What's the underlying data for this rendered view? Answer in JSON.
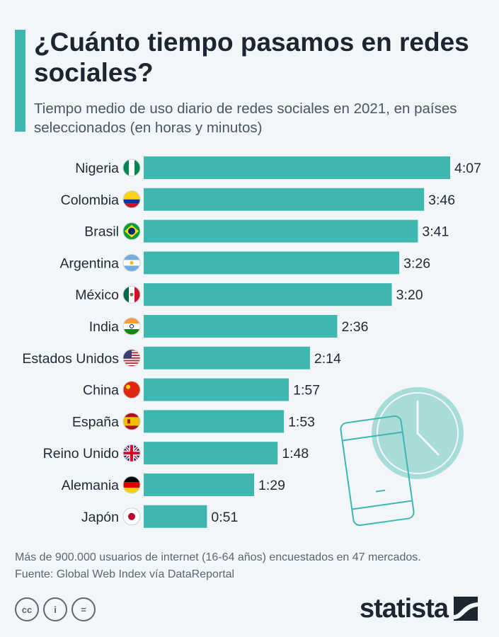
{
  "header": {
    "title": "¿Cuánto tiempo pasamos en redes sociales?",
    "subtitle": "Tiempo medio de uso diario de redes sociales en 2021, en países seleccionados (en horas y minutos)"
  },
  "chart_data": {
    "type": "bar",
    "orientation": "horizontal",
    "title": "¿Cuánto tiempo pasamos en redes sociales?",
    "xlabel": "",
    "ylabel": "",
    "unit": "minutes",
    "xlim": [
      0,
      247
    ],
    "grid": false,
    "categories": [
      "Nigeria",
      "Colombia",
      "Brasil",
      "Argentina",
      "México",
      "India",
      "Estados Unidos",
      "China",
      "España",
      "Reino Unido",
      "Alemania",
      "Japón"
    ],
    "values": [
      247,
      226,
      221,
      206,
      200,
      156,
      134,
      117,
      113,
      108,
      89,
      51
    ],
    "value_labels": [
      "4:07",
      "3:46",
      "3:41",
      "3:26",
      "3:20",
      "2:36",
      "2:14",
      "1:57",
      "1:53",
      "1:48",
      "1:29",
      "0:51"
    ],
    "flags": [
      "nigeria-flag-icon",
      "colombia-flag-icon",
      "brazil-flag-icon",
      "argentina-flag-icon",
      "mexico-flag-icon",
      "india-flag-icon",
      "usa-flag-icon",
      "china-flag-icon",
      "spain-flag-icon",
      "uk-flag-icon",
      "germany-flag-icon",
      "japan-flag-icon"
    ],
    "bar_color": "#3db7b0"
  },
  "footer": {
    "note": "Más de 900.000 usuarios de internet (16-64 años) encuestados en 47 mercados.",
    "source": "Fuente: Global Web Index vía DataReportal",
    "logo_text": "statista",
    "cc_label": "cc",
    "by_label": "i",
    "nd_label": "="
  },
  "colors": {
    "accent": "#3db7b0",
    "background": "#f3f6f9",
    "illustration": "#a8dcd9"
  }
}
